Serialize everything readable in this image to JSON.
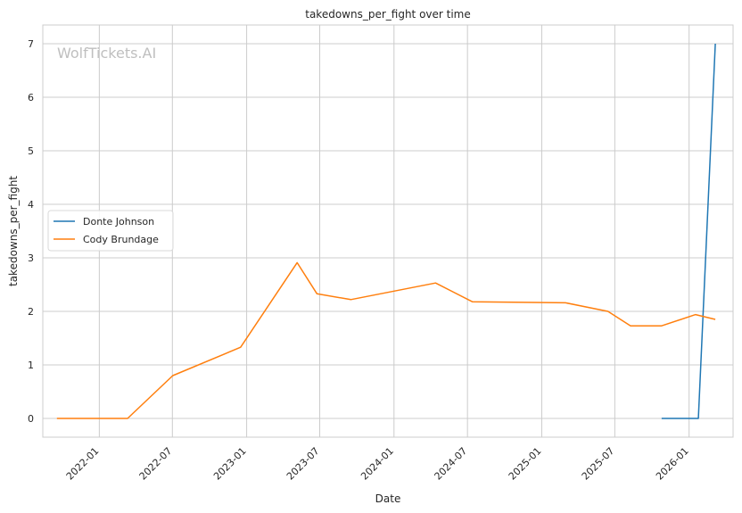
{
  "chart_data": {
    "type": "line",
    "title": "takedowns_per_fight over time",
    "xlabel": "Date",
    "ylabel": "takedowns_per_fight",
    "watermark": "WolfTickets.AI",
    "x_ticks": [
      "2022-01",
      "2022-07",
      "2023-01",
      "2023-07",
      "2024-01",
      "2024-07",
      "2025-01",
      "2025-07",
      "2026-01"
    ],
    "y_ticks": [
      "0",
      "1",
      "2",
      "3",
      "4",
      "5",
      "6",
      "7"
    ],
    "ylim": [
      -0.35,
      7.35
    ],
    "xlim": [
      "2021-08-14",
      "2026-04-20"
    ],
    "grid": true,
    "legend_position": "center-left",
    "series": [
      {
        "name": "Donte Johnson",
        "color": "#1f77b4",
        "points": [
          {
            "x": "2025-10-25",
            "y": 0
          },
          {
            "x": "2026-01-24",
            "y": 0
          },
          {
            "x": "2026-03-07",
            "y": 7
          }
        ]
      },
      {
        "name": "Cody Brundage",
        "color": "#ff7f0e",
        "points": [
          {
            "x": "2021-09-18",
            "y": 0
          },
          {
            "x": "2022-03-12",
            "y": 0
          },
          {
            "x": "2022-07-02",
            "y": 0.8
          },
          {
            "x": "2022-12-17",
            "y": 1.33
          },
          {
            "x": "2023-05-06",
            "y": 2.91
          },
          {
            "x": "2023-06-24",
            "y": 2.33
          },
          {
            "x": "2023-09-16",
            "y": 2.22
          },
          {
            "x": "2024-04-13",
            "y": 2.53
          },
          {
            "x": "2024-07-13",
            "y": 2.18
          },
          {
            "x": "2025-03-01",
            "y": 2.16
          },
          {
            "x": "2025-06-14",
            "y": 2.0
          },
          {
            "x": "2025-08-09",
            "y": 1.73
          },
          {
            "x": "2025-10-25",
            "y": 1.73
          },
          {
            "x": "2026-01-17",
            "y": 1.94
          },
          {
            "x": "2026-03-07",
            "y": 1.85
          }
        ]
      }
    ]
  }
}
